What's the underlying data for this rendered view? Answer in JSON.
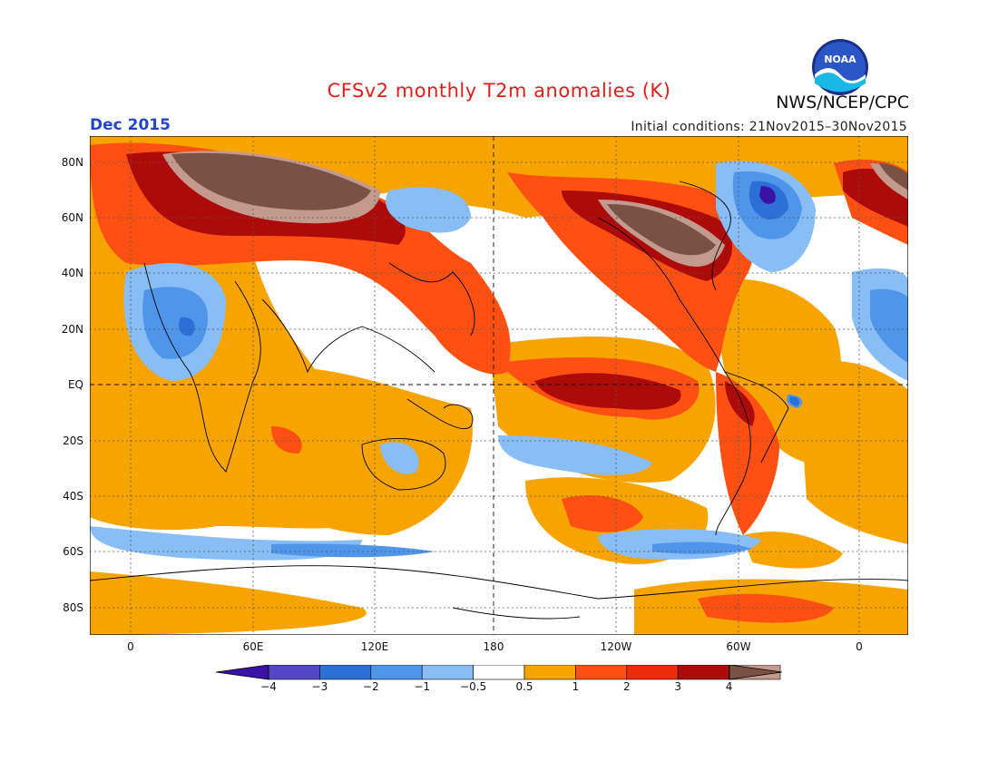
{
  "header": {
    "title": "CFSv2 monthly T2m anomalies (K)",
    "agency": "NWS/NCEP/CPC",
    "logo_text": "NOAA",
    "valid_month": "Dec 2015",
    "initial_conditions": "Initial conditions: 21Nov2015–30Nov2015"
  },
  "axes": {
    "lat_labels": [
      "80N",
      "60N",
      "40N",
      "20N",
      "EQ",
      "20S",
      "40S",
      "60S",
      "80S"
    ],
    "lon_labels": [
      "0",
      "60E",
      "120E",
      "180",
      "120W",
      "60W",
      "0"
    ]
  },
  "colorbar": {
    "labels": [
      "−4",
      "−3",
      "−2",
      "−1",
      "−0.5",
      "0.5",
      "1",
      "2",
      "3",
      "4"
    ],
    "colors": {
      "lt_m4": "#3a12a6",
      "m4_m3": "#5545c7",
      "m3_m2": "#2c6fd6",
      "m2_m1": "#4f96eb",
      "m1_m05": "#88bdf5",
      "m05_05": "#ffffff",
      "p05_1": "#f7a400",
      "p1_2": "#ff5014",
      "p2_3": "#ec2a0c",
      "p3_4": "#ad0a0a",
      "gt4": "#c49a8e",
      "extreme": "#7a5145"
    }
  }
}
